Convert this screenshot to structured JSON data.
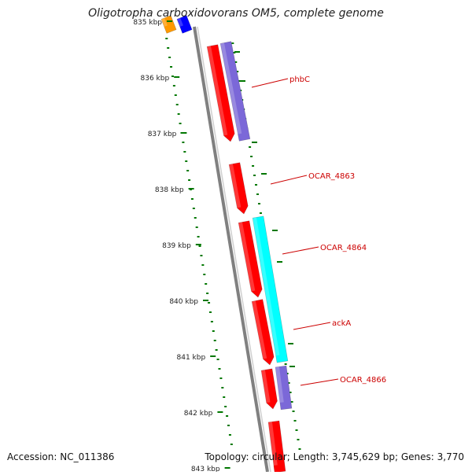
{
  "title": "Oligotropha carboxidovorans OM5, complete genome",
  "footer": {
    "accession": "Accession: NC_011386",
    "summary": "Topology: circular; Length: 3,745,629 bp; Genes: 3,770"
  },
  "ruler": {
    "unit": "kbp",
    "ticks": [
      "835 kbp",
      "836 kbp",
      "837 kbp",
      "838 kbp",
      "839 kbp",
      "840 kbp",
      "841 kbp",
      "842 kbp",
      "843 kbp"
    ]
  },
  "genes": [
    {
      "name": "phbC",
      "color": "#ff0000"
    },
    {
      "name": "OCAR_4863",
      "color": "#ff0000"
    },
    {
      "name": "OCAR_4864",
      "color": "#ff0000"
    },
    {
      "name": "ackA",
      "color": "#ff0000"
    },
    {
      "name": "OCAR_4866",
      "color": "#ff0000"
    }
  ],
  "colors": {
    "gene": "#ff0000",
    "blast_hit": "#7b68d8",
    "blast_hit_alt": "#00ffff",
    "upstream_orange": "#ff9900",
    "upstream_blue": "#0000ff",
    "backbone": "#808080",
    "gc_dots": "#007700",
    "label": "#cc0000"
  }
}
